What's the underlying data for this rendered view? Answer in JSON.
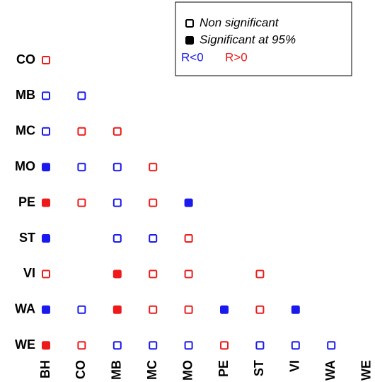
{
  "chart_data": {
    "type": "matrix",
    "rows": [
      "CO",
      "MB",
      "MC",
      "MO",
      "PE",
      "ST",
      "VI",
      "WA",
      "WE"
    ],
    "columns": [
      "BH",
      "CO",
      "MB",
      "MC",
      "MO",
      "PE",
      "ST",
      "VI",
      "WA",
      "WE"
    ],
    "legend": {
      "markers": [
        {
          "label": "Non significant",
          "filled": false
        },
        {
          "label": "Significant at 95%",
          "filled": true
        }
      ],
      "colors": [
        {
          "label": "R<0",
          "color": "#1a1aee"
        },
        {
          "label": "R>0",
          "color": "#ee1a1a"
        }
      ]
    },
    "matrix": [
      [
        {
          "sign": "R>0",
          "significant": false
        }
      ],
      [
        {
          "sign": "R<0",
          "significant": false
        },
        {
          "sign": "R<0",
          "significant": false
        }
      ],
      [
        {
          "sign": "R<0",
          "significant": false
        },
        {
          "sign": "R>0",
          "significant": false
        },
        {
          "sign": "R>0",
          "significant": false
        }
      ],
      [
        {
          "sign": "R<0",
          "significant": true
        },
        {
          "sign": "R<0",
          "significant": false
        },
        {
          "sign": "R<0",
          "significant": false
        },
        {
          "sign": "R>0",
          "significant": false
        }
      ],
      [
        {
          "sign": "R>0",
          "significant": true
        },
        {
          "sign": "R>0",
          "significant": false
        },
        {
          "sign": "R<0",
          "significant": false
        },
        {
          "sign": "R>0",
          "significant": false
        },
        {
          "sign": "R<0",
          "significant": true
        }
      ],
      [
        {
          "sign": "R<0",
          "significant": true
        },
        null,
        {
          "sign": "R<0",
          "significant": false
        },
        {
          "sign": "R<0",
          "significant": false
        },
        {
          "sign": "R>0",
          "significant": false
        },
        null
      ],
      [
        {
          "sign": "R>0",
          "significant": false
        },
        null,
        {
          "sign": "R>0",
          "significant": true
        },
        {
          "sign": "R>0",
          "significant": false
        },
        {
          "sign": "R>0",
          "significant": false
        },
        null,
        {
          "sign": "R>0",
          "significant": false
        }
      ],
      [
        {
          "sign": "R<0",
          "significant": true
        },
        {
          "sign": "R<0",
          "significant": false
        },
        {
          "sign": "R>0",
          "significant": true
        },
        {
          "sign": "R>0",
          "significant": false
        },
        {
          "sign": "R>0",
          "significant": false
        },
        {
          "sign": "R<0",
          "significant": true
        },
        {
          "sign": "R>0",
          "significant": false
        },
        {
          "sign": "R<0",
          "significant": true
        }
      ],
      [
        {
          "sign": "R>0",
          "significant": true
        },
        {
          "sign": "R>0",
          "significant": false
        },
        {
          "sign": "R<0",
          "significant": false
        },
        {
          "sign": "R<0",
          "significant": false
        },
        {
          "sign": "R<0",
          "significant": false
        },
        {
          "sign": "R>0",
          "significant": false
        },
        {
          "sign": "R<0",
          "significant": false
        },
        {
          "sign": "R<0",
          "significant": false
        },
        {
          "sign": "R<0",
          "significant": false
        }
      ]
    ]
  }
}
